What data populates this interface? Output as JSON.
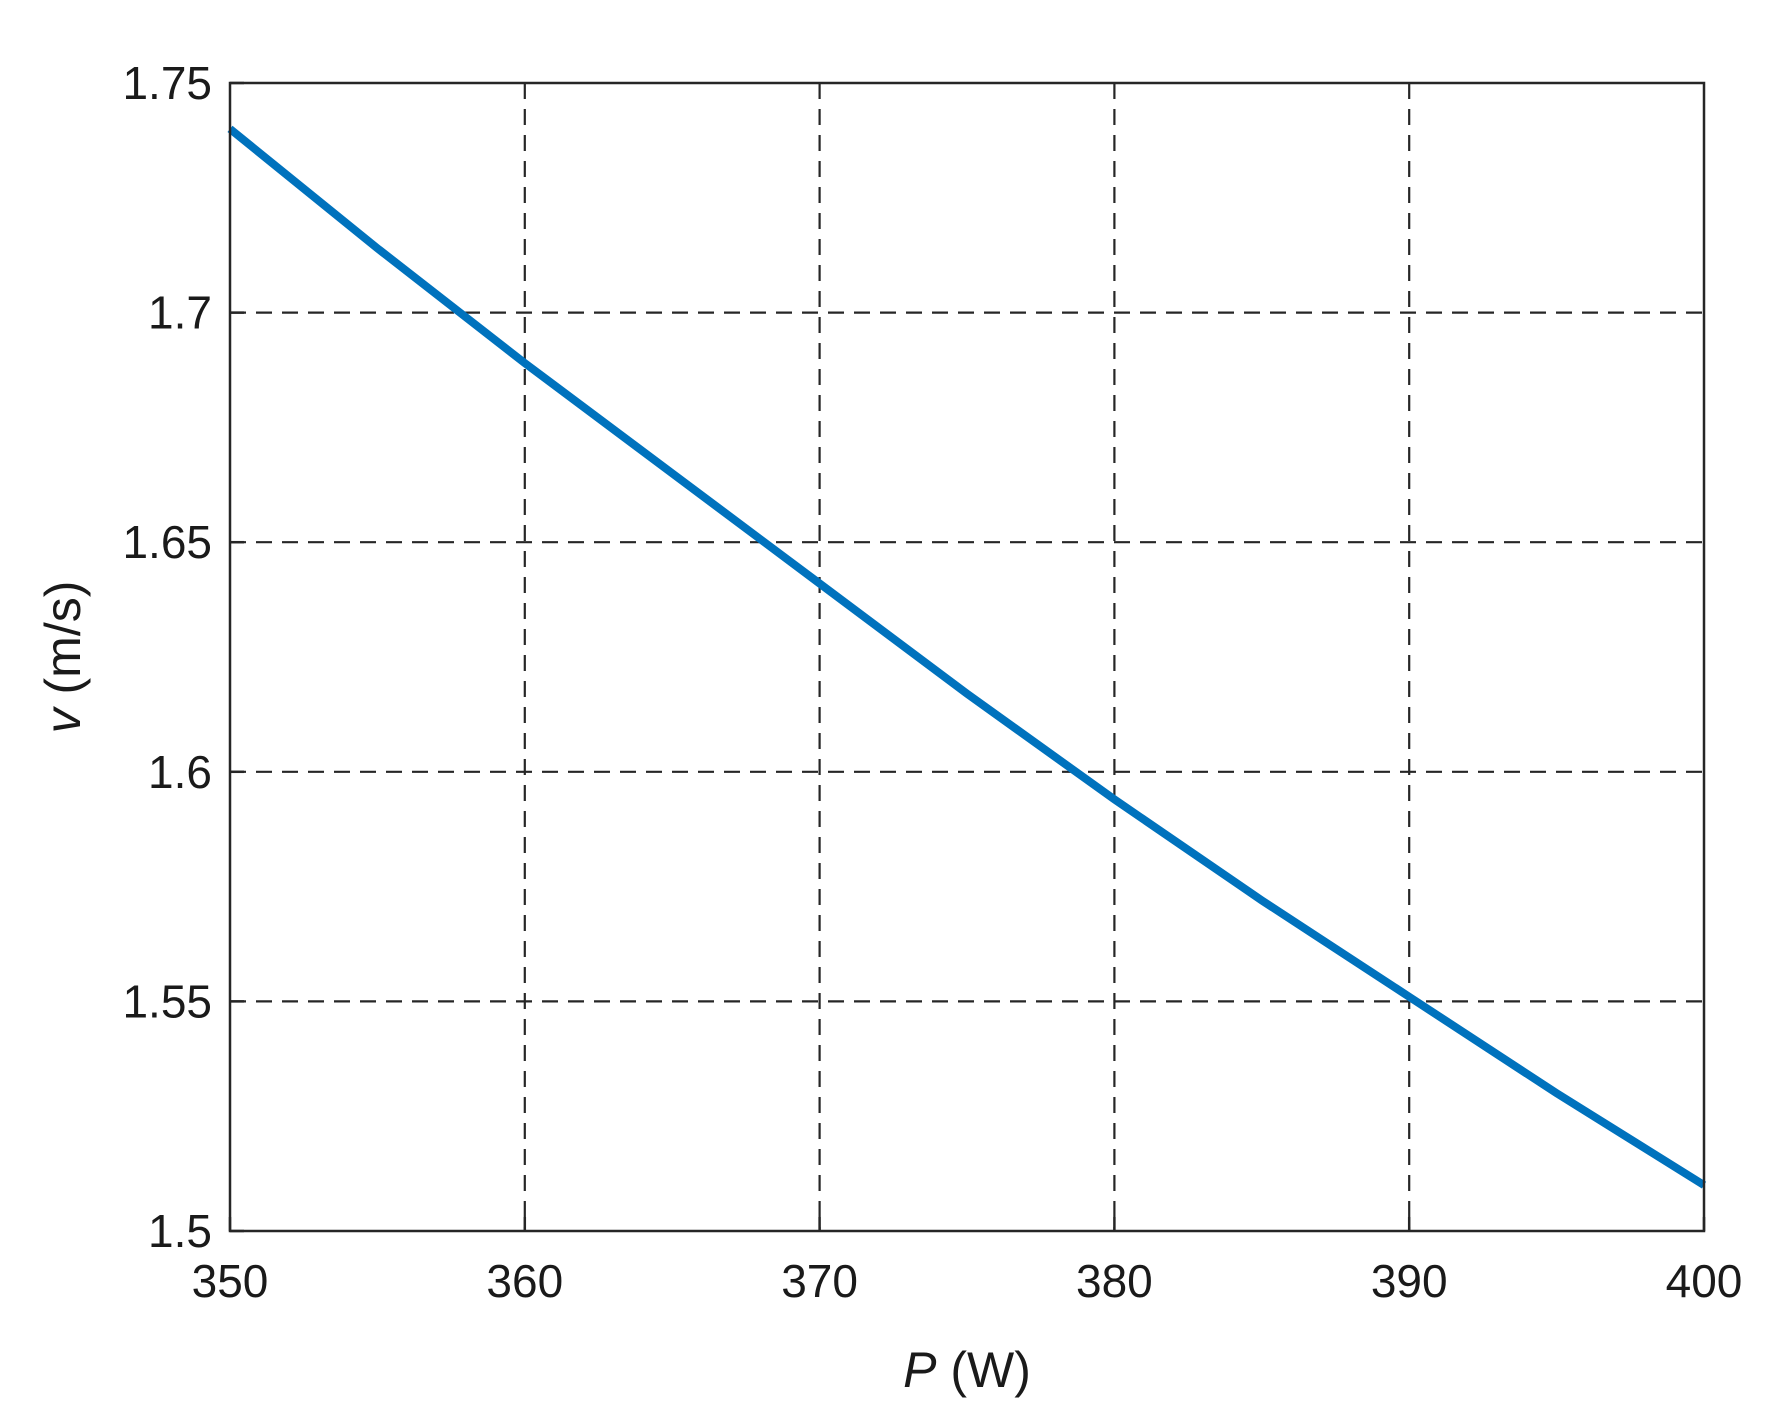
{
  "chart_data": {
    "type": "line",
    "xlabel_var": "P",
    "xlabel_unit": " (W)",
    "ylabel_var": "v",
    "ylabel_unit": " (m/s)",
    "xlim": [
      350,
      400
    ],
    "ylim": [
      1.5,
      1.75
    ],
    "xticks": [
      350,
      360,
      370,
      380,
      390,
      400
    ],
    "yticks": [
      1.5,
      1.55,
      1.6,
      1.65,
      1.7,
      1.75
    ],
    "xtick_labels": [
      "350",
      "360",
      "370",
      "380",
      "390",
      "400"
    ],
    "ytick_labels": [
      "1.5",
      "1.55",
      "1.6",
      "1.65",
      "1.7",
      "1.75"
    ],
    "grid": true,
    "grid_style": "dashed",
    "series": [
      {
        "color": "#0072BD",
        "x": [
          350,
          355,
          360,
          365,
          370,
          375,
          380,
          385,
          390,
          395,
          400
        ],
        "y": [
          1.74,
          1.714,
          1.689,
          1.665,
          1.641,
          1.617,
          1.594,
          1.572,
          1.551,
          1.53,
          1.51
        ]
      }
    ]
  }
}
